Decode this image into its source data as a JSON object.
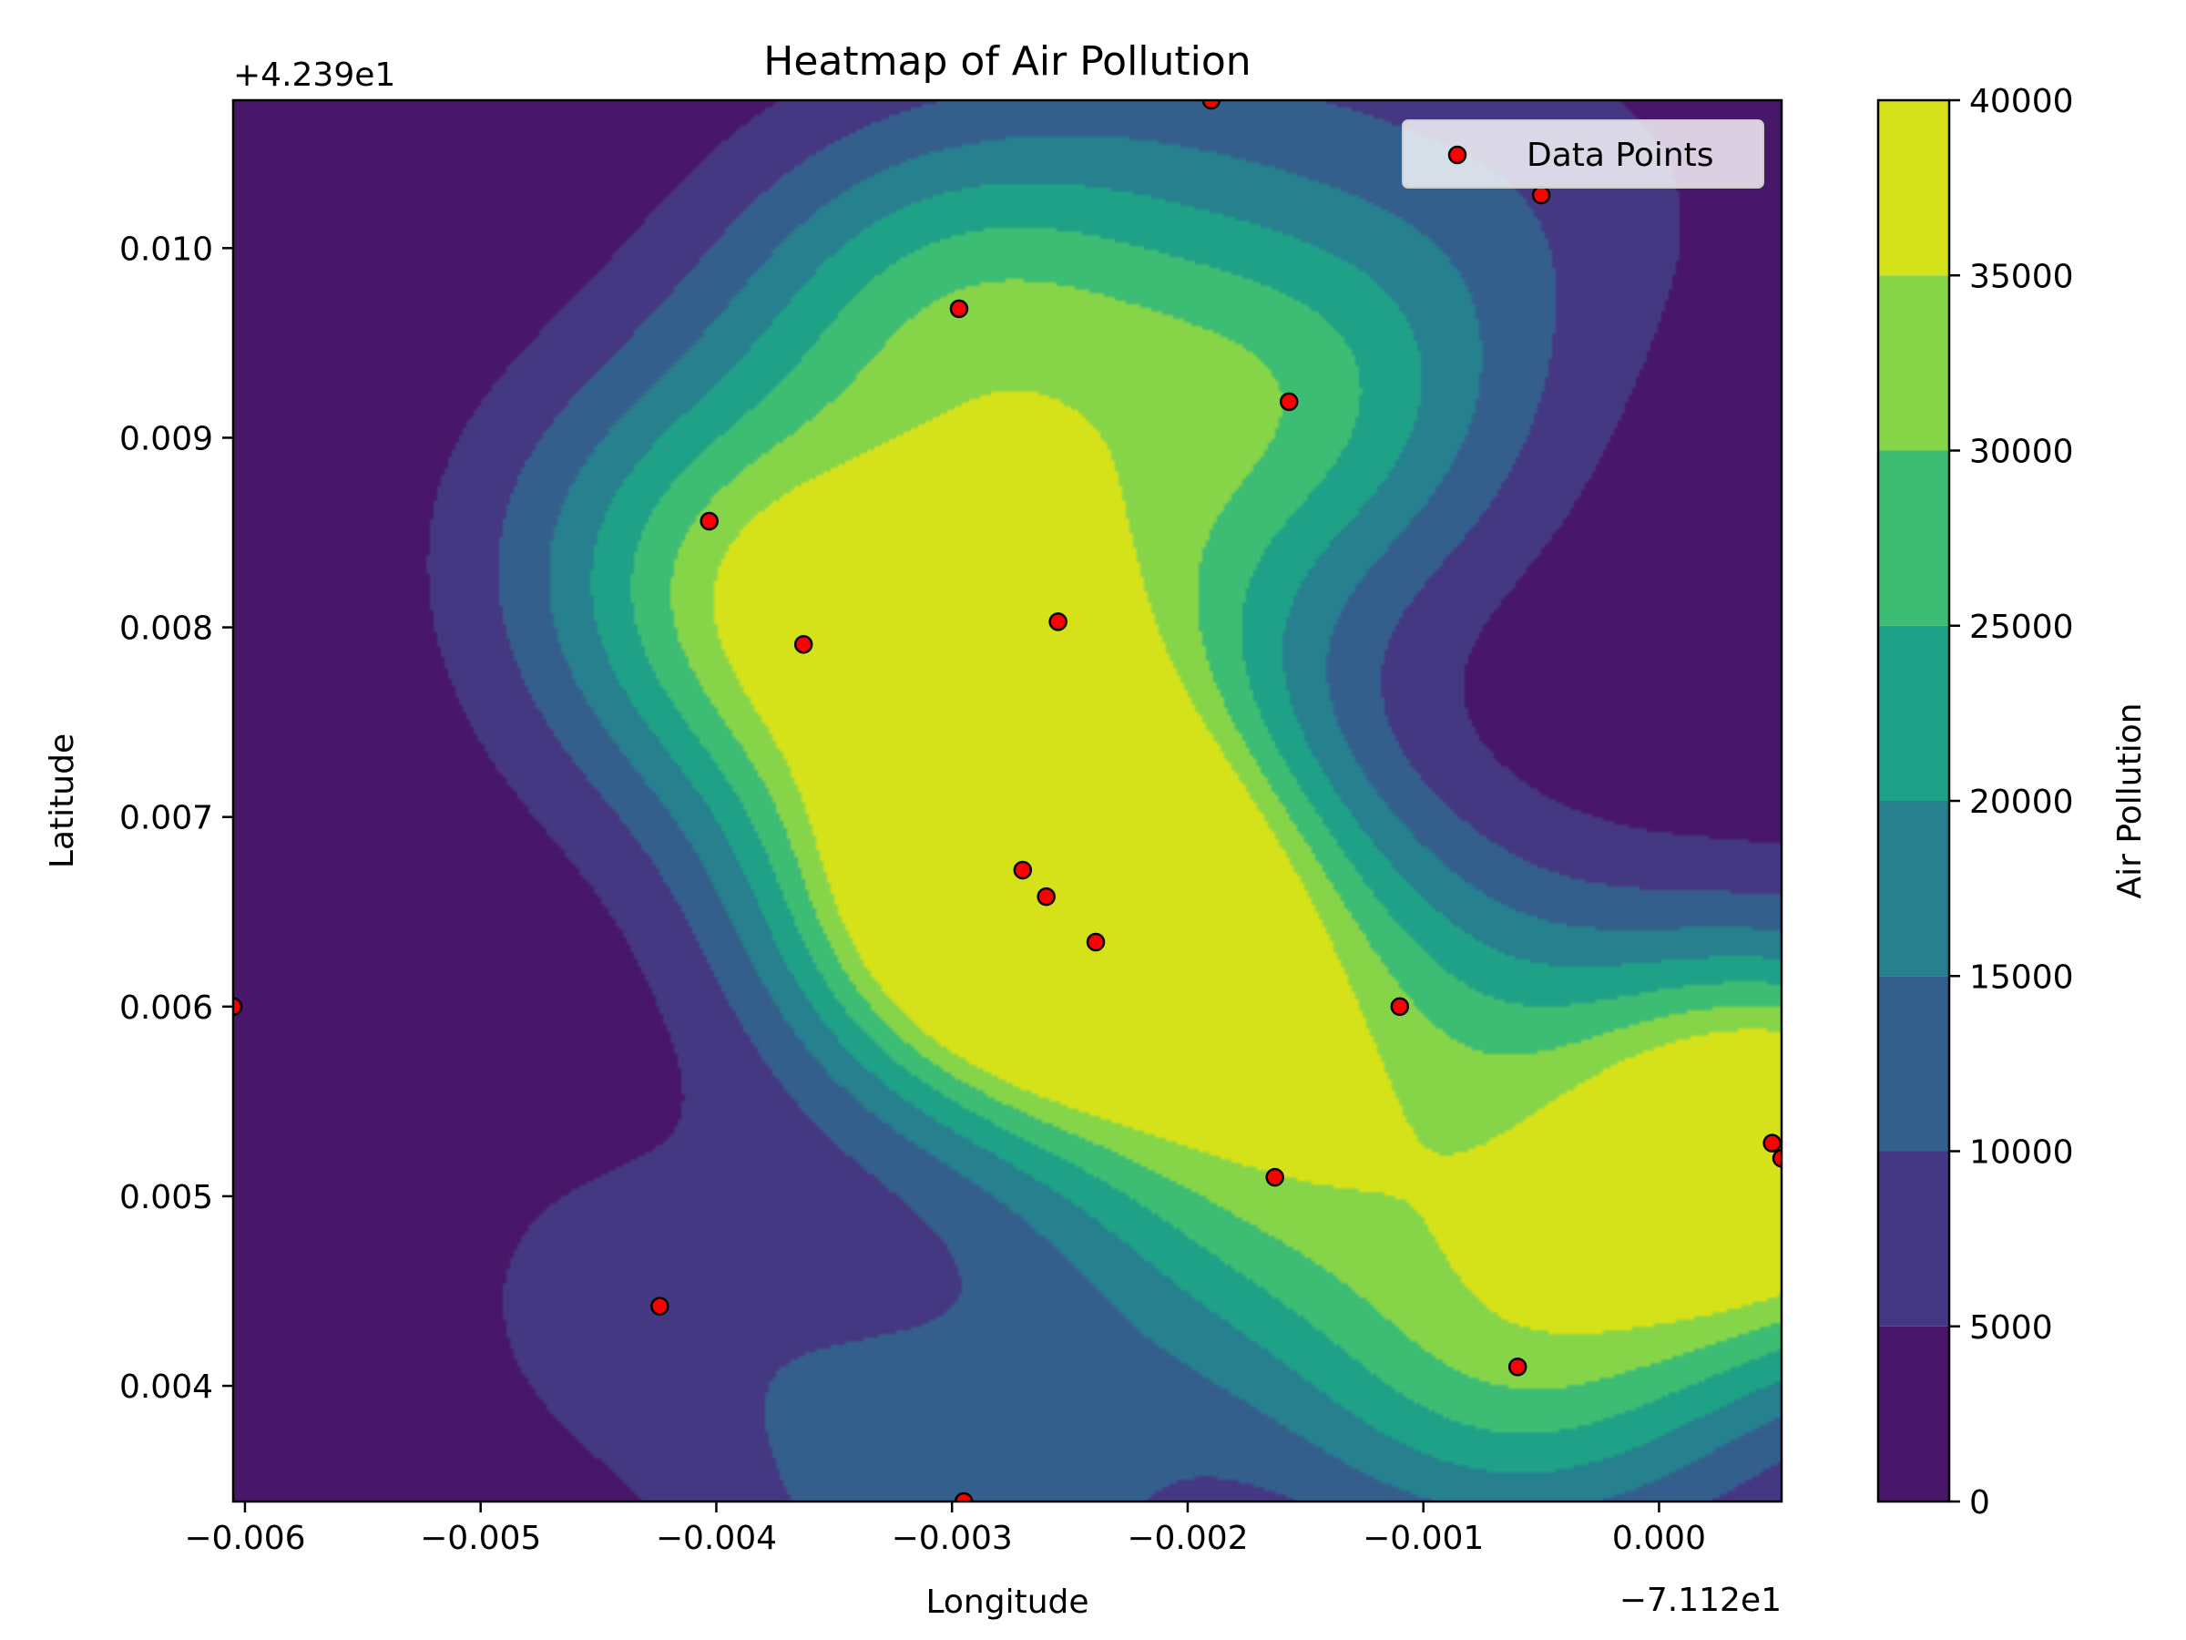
{
  "chart_data": {
    "type": "heatmap",
    "title": "Heatmap of Air Pollution",
    "xlabel": "Longitude",
    "ylabel": "Latitude",
    "x_offset_label": "−7.112e1",
    "y_offset_label": "+4.239e1",
    "xlim": [
      -0.00605,
      0.00052
    ],
    "ylim": [
      0.00339,
      0.01078
    ],
    "x_ticks": [
      -0.006,
      -0.005,
      -0.004,
      -0.003,
      -0.002,
      -0.001,
      0.0
    ],
    "x_tick_labels": [
      "−0.006",
      "−0.005",
      "−0.004",
      "−0.003",
      "−0.002",
      "−0.001",
      "0.000"
    ],
    "y_ticks": [
      0.004,
      0.005,
      0.006,
      0.007,
      0.008,
      0.009,
      0.01
    ],
    "y_tick_labels": [
      "0.004",
      "0.005",
      "0.006",
      "0.007",
      "0.008",
      "0.009",
      "0.010"
    ],
    "colorbar": {
      "label": "Air Pollution",
      "levels": [
        0,
        5000,
        10000,
        15000,
        20000,
        25000,
        30000,
        35000,
        40000
      ],
      "level_labels": [
        "0",
        "5000",
        "10000",
        "15000",
        "20000",
        "25000",
        "30000",
        "35000",
        "40000"
      ],
      "colors": [
        "#481769",
        "#453882",
        "#345f8d",
        "#26808e",
        "#1fa187",
        "#3dbc74",
        "#86d549",
        "#d5e21a"
      ]
    },
    "legend": {
      "entries": [
        "Data Points"
      ],
      "position": "top-right"
    },
    "grid": false,
    "series": [
      {
        "name": "Data Points",
        "marker_color": "#ff0000",
        "edge_color": "#000000",
        "points": [
          {
            "x": -0.0019,
            "y": 0.01078
          },
          {
            "x": -0.0005,
            "y": 0.01028
          },
          {
            "x": -0.00297,
            "y": 0.00968
          },
          {
            "x": -0.00157,
            "y": 0.00919
          },
          {
            "x": -0.00403,
            "y": 0.00856
          },
          {
            "x": -0.00255,
            "y": 0.00803
          },
          {
            "x": -0.00363,
            "y": 0.00791
          },
          {
            "x": -0.0027,
            "y": 0.00672
          },
          {
            "x": -0.0026,
            "y": 0.00658
          },
          {
            "x": -0.00239,
            "y": 0.00634
          },
          {
            "x": -0.00605,
            "y": 0.006
          },
          {
            "x": -0.0011,
            "y": 0.006
          },
          {
            "x": 0.00048,
            "y": 0.00528
          },
          {
            "x": 0.00052,
            "y": 0.0052
          },
          {
            "x": -0.00163,
            "y": 0.0051
          },
          {
            "x": -0.00424,
            "y": 0.00442
          },
          {
            "x": -0.0006,
            "y": 0.0041
          },
          {
            "x": -0.00295,
            "y": 0.00339
          }
        ]
      }
    ]
  }
}
